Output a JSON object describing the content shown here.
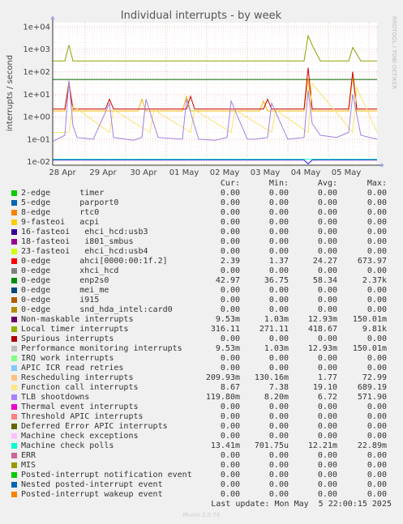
{
  "title": "Individual interrupts - by week",
  "side_label": "RRDTOOL / TOBI OETIKER",
  "footer": "Munin 2.0.76",
  "last_update": "Last update: Mon May  5 22:00:15 2025",
  "legend_headers": {
    "cur": "Cur:",
    "min": "Min:",
    "avg": "Avg:",
    "max": "Max:"
  },
  "chart_data": {
    "type": "line",
    "title": "Individual interrupts - by week",
    "ylabel": "interrupts / second",
    "yscale": "log",
    "ylim": [
      0.007,
      15000
    ],
    "yticks": [
      {
        "value": 0.01,
        "label": "1e-02"
      },
      {
        "value": 0.1,
        "label": "1e-01"
      },
      {
        "value": 1,
        "label": "1e+00"
      },
      {
        "value": 10,
        "label": "1e+01"
      },
      {
        "value": 100,
        "label": "1e+02"
      },
      {
        "value": 1000,
        "label": "1e+03"
      },
      {
        "value": 10000,
        "label": "1e+04"
      }
    ],
    "xlim": [
      0,
      8
    ],
    "xticks": [
      {
        "value": 0.8,
        "label": "28 Apr"
      },
      {
        "value": 1.8,
        "label": "29 Apr"
      },
      {
        "value": 2.8,
        "label": "30 Apr"
      },
      {
        "value": 3.8,
        "label": "01 May"
      },
      {
        "value": 4.8,
        "label": "02 May"
      },
      {
        "value": 5.8,
        "label": "03 May"
      },
      {
        "value": 6.8,
        "label": "04 May"
      },
      {
        "value": 7.8,
        "label": "05 May"
      }
    ],
    "grid": true,
    "series": [
      {
        "name": "Local timer interrupts",
        "color": "#8fa000",
        "x": [
          0,
          0.3,
          0.4,
          0.5,
          1.5,
          2.5,
          3.5,
          4.5,
          5.5,
          6.2,
          6.3,
          6.4,
          6.6,
          7.0,
          7.3,
          7.4,
          7.6,
          8.0
        ],
        "y": [
          300,
          300,
          1500,
          300,
          300,
          300,
          300,
          300,
          300,
          300,
          4000,
          1500,
          300,
          300,
          300,
          1200,
          300,
          300
        ]
      },
      {
        "name": "enp2s0",
        "color": "#006600",
        "x": [
          0,
          1.5,
          3.0,
          4.5,
          6.0,
          6.2,
          6.4,
          8.0
        ],
        "y": [
          45,
          45,
          45,
          45,
          45,
          45,
          45,
          45
        ]
      },
      {
        "name": "Rescheduling interrupts",
        "color": "#f2b600",
        "x": [
          0,
          0.3,
          0.4,
          0.5,
          2.1,
          2.2,
          2.3,
          3.2,
          3.3,
          3.4,
          5.1,
          5.2,
          5.3,
          6.2,
          6.3,
          6.4,
          7.3,
          7.4,
          7.5,
          8.0
        ],
        "y": [
          1.8,
          1.8,
          40,
          1.8,
          1.8,
          6,
          1.8,
          1.8,
          8,
          1.8,
          1.8,
          5,
          1.8,
          1.8,
          50,
          1.8,
          1.8,
          60,
          1.8,
          1.8
        ]
      },
      {
        "name": "ahci[0000:00:1f.2]",
        "color": "#cc0000",
        "x": [
          0,
          0.3,
          0.4,
          0.5,
          1.3,
          1.4,
          1.5,
          3.3,
          3.4,
          3.5,
          5.2,
          5.3,
          5.4,
          6.2,
          6.3,
          6.4,
          7.3,
          7.4,
          7.5,
          8.0
        ],
        "y": [
          2.2,
          2.2,
          30,
          2.2,
          2.2,
          6,
          2.2,
          2.2,
          8,
          2.2,
          2.2,
          6,
          2.2,
          2.2,
          150,
          2.2,
          2.2,
          100,
          2.2,
          2.2
        ]
      },
      {
        "name": "Function call interrupts",
        "color": "#f7e36e",
        "x": [
          0,
          0.4,
          0.5,
          1.4,
          1.5,
          2.4,
          2.5,
          3.4,
          3.5,
          4.4,
          4.5,
          5.4,
          5.5,
          6.3,
          6.4,
          7.4,
          7.5,
          8.0
        ],
        "y": [
          0.2,
          0.2,
          3,
          0.2,
          2,
          0.2,
          2,
          0.2,
          2,
          0.2,
          2,
          0.2,
          2,
          0.2,
          30,
          0.2,
          20,
          0.2
        ]
      },
      {
        "name": "TLB shootdowns",
        "color": "#a080e0",
        "x": [
          0,
          0.3,
          0.4,
          0.5,
          0.6,
          1.0,
          1.4,
          1.5,
          1.8,
          2.0,
          2.2,
          2.3,
          2.6,
          3.2,
          3.3,
          3.6,
          4.0,
          4.3,
          4.4,
          4.8,
          5.0,
          5.3,
          5.4,
          5.8,
          6.2,
          6.3,
          6.4,
          6.6,
          7.0,
          7.3,
          7.4,
          7.6,
          8.0
        ],
        "y": [
          0.08,
          0.15,
          40,
          0.4,
          0.12,
          0.1,
          4,
          0.12,
          0.1,
          0.09,
          0.12,
          6,
          0.12,
          0.1,
          6,
          0.1,
          0.09,
          0.12,
          5,
          0.1,
          0.1,
          0.12,
          4,
          0.1,
          0.12,
          15,
          0.5,
          0.15,
          0.12,
          0.2,
          10,
          0.15,
          0.1
        ]
      },
      {
        "name": "Machine check polls",
        "color": "#33ffcc",
        "x": [
          0,
          2.0,
          4.0,
          6.0,
          6.3,
          6.4,
          8.0
        ],
        "y": [
          0.013,
          0.013,
          0.013,
          0.013,
          0.013,
          0.013,
          0.013
        ]
      },
      {
        "name": "Non-maskable interrupts",
        "color": "#2222cc",
        "x": [
          0,
          2.0,
          4.0,
          6.2,
          6.3,
          6.4,
          8.0
        ],
        "y": [
          0.012,
          0.012,
          0.012,
          0.012,
          0.008,
          0.012,
          0.012
        ]
      }
    ]
  },
  "legend": [
    {
      "name": "2-edge      timer",
      "color": "#00cc00",
      "cur": "0.00",
      "min": "0.00",
      "avg": "0.00",
      "max": "0.00"
    },
    {
      "name": "5-edge      parport0",
      "color": "#0066b3",
      "cur": "0.00",
      "min": "0.00",
      "avg": "0.00",
      "max": "0.00"
    },
    {
      "name": "8-edge      rtc0",
      "color": "#ff8000",
      "cur": "0.00",
      "min": "0.00",
      "avg": "0.00",
      "max": "0.00"
    },
    {
      "name": "9-fasteoi   acpi",
      "color": "#ffcc00",
      "cur": "0.00",
      "min": "0.00",
      "avg": "0.00",
      "max": "0.00"
    },
    {
      "name": "16-fasteoi   ehci_hcd:usb3",
      "color": "#330099",
      "cur": "0.00",
      "min": "0.00",
      "avg": "0.00",
      "max": "0.00"
    },
    {
      "name": "18-fasteoi   i801_smbus",
      "color": "#990099",
      "cur": "0.00",
      "min": "0.00",
      "avg": "0.00",
      "max": "0.00"
    },
    {
      "name": "23-fasteoi   ehci_hcd:usb4",
      "color": "#ccff00",
      "cur": "0.00",
      "min": "0.00",
      "avg": "0.00",
      "max": "0.00"
    },
    {
      "name": "0-edge      ahci[0000:00:1f.2]",
      "color": "#ff0000",
      "cur": "2.39",
      "min": "1.37",
      "avg": "24.27",
      "max": "673.97"
    },
    {
      "name": "0-edge      xhci_hcd",
      "color": "#808080",
      "cur": "0.00",
      "min": "0.00",
      "avg": "0.00",
      "max": "0.00"
    },
    {
      "name": "0-edge      enp2s0",
      "color": "#008f00",
      "cur": "42.97",
      "min": "36.75",
      "avg": "58.34",
      "max": "2.37k"
    },
    {
      "name": "0-edge      mei_me",
      "color": "#00487d",
      "cur": "0.00",
      "min": "0.00",
      "avg": "0.00",
      "max": "0.00"
    },
    {
      "name": "0-edge      i915",
      "color": "#b35a00",
      "cur": "0.00",
      "min": "0.00",
      "avg": "0.00",
      "max": "0.00"
    },
    {
      "name": "0-edge      snd_hda_intel:card0",
      "color": "#b38f00",
      "cur": "0.00",
      "min": "0.00",
      "avg": "0.00",
      "max": "0.00"
    },
    {
      "name": "Non-maskable interrupts",
      "color": "#6b006b",
      "cur": "9.53m",
      "min": "1.03m",
      "avg": "12.93m",
      "max": "150.01m"
    },
    {
      "name": "Local timer interrupts",
      "color": "#8fb300",
      "cur": "316.11",
      "min": "271.11",
      "avg": "418.67",
      "max": "9.81k"
    },
    {
      "name": "Spurious interrupts",
      "color": "#b30000",
      "cur": "0.00",
      "min": "0.00",
      "avg": "0.00",
      "max": "0.00"
    },
    {
      "name": "Performance monitoring interrupts",
      "color": "#bebebe",
      "cur": "9.53m",
      "min": "1.03m",
      "avg": "12.93m",
      "max": "150.01m"
    },
    {
      "name": "IRQ work interrupts",
      "color": "#80ff80",
      "cur": "0.00",
      "min": "0.00",
      "avg": "0.00",
      "max": "0.00"
    },
    {
      "name": "APIC ICR read retries",
      "color": "#80c9ff",
      "cur": "0.00",
      "min": "0.00",
      "avg": "0.00",
      "max": "0.00"
    },
    {
      "name": "Rescheduling interrupts",
      "color": "#ffc080",
      "cur": "209.93m",
      "min": "130.16m",
      "avg": "1.77",
      "max": "72.99"
    },
    {
      "name": "Function call interrupts",
      "color": "#ffe680",
      "cur": "8.67",
      "min": "7.38",
      "avg": "19.10",
      "max": "689.19"
    },
    {
      "name": "TLB shootdowns",
      "color": "#aa80ff",
      "cur": "119.80m",
      "min": "8.20m",
      "avg": "6.72",
      "max": "571.90"
    },
    {
      "name": "Thermal event interrupts",
      "color": "#ee00cc",
      "cur": "0.00",
      "min": "0.00",
      "avg": "0.00",
      "max": "0.00"
    },
    {
      "name": "Threshold APIC interrupts",
      "color": "#ff8080",
      "cur": "0.00",
      "min": "0.00",
      "avg": "0.00",
      "max": "0.00"
    },
    {
      "name": "Deferred Error APIC interrupts",
      "color": "#666600",
      "cur": "0.00",
      "min": "0.00",
      "avg": "0.00",
      "max": "0.00"
    },
    {
      "name": "Machine check exceptions",
      "color": "#ffbfff",
      "cur": "0.00",
      "min": "0.00",
      "avg": "0.00",
      "max": "0.00"
    },
    {
      "name": "Machine check polls",
      "color": "#00ffcc",
      "cur": "13.41m",
      "min": "701.75u",
      "avg": "12.21m",
      "max": "22.89m"
    },
    {
      "name": "ERR",
      "color": "#cc6699",
      "cur": "0.00",
      "min": "0.00",
      "avg": "0.00",
      "max": "0.00"
    },
    {
      "name": "MIS",
      "color": "#999900",
      "cur": "0.00",
      "min": "0.00",
      "avg": "0.00",
      "max": "0.00"
    },
    {
      "name": "Posted-interrupt notification event",
      "color": "#00cc00",
      "cur": "0.00",
      "min": "0.00",
      "avg": "0.00",
      "max": "0.00"
    },
    {
      "name": "Nested posted-interrupt event",
      "color": "#0066b3",
      "cur": "0.00",
      "min": "0.00",
      "avg": "0.00",
      "max": "0.00"
    },
    {
      "name": "Posted-interrupt wakeup event",
      "color": "#ff8000",
      "cur": "0.00",
      "min": "0.00",
      "avg": "0.00",
      "max": "0.00"
    }
  ]
}
